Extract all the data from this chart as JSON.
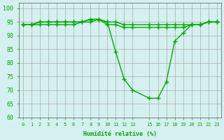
{
  "title": "Humidité relative (%)",
  "xlabel": "Humidité relative (%)",
  "background_color": "#d5f0f0",
  "grid_color": "#aaaaaa",
  "line_color": "#00aa00",
  "xlim": [
    0,
    23
  ],
  "ylim": [
    60,
    102
  ],
  "xticks": [
    0,
    1,
    2,
    3,
    4,
    5,
    6,
    7,
    8,
    9,
    10,
    11,
    12,
    13,
    15,
    16,
    17,
    18,
    19,
    20,
    21,
    22,
    23
  ],
  "yticks": [
    60,
    65,
    70,
    75,
    80,
    85,
    90,
    95,
    100
  ],
  "series": [
    {
      "x": [
        0,
        1,
        2,
        3,
        4,
        5,
        6,
        7,
        8,
        9,
        10,
        11,
        12,
        13,
        15,
        16,
        17,
        18,
        19,
        20,
        21,
        22,
        23
      ],
      "y": [
        94,
        94,
        95,
        95,
        95,
        95,
        95,
        95,
        96,
        96,
        95,
        84,
        74,
        70,
        67,
        67,
        73,
        88,
        91,
        94,
        94,
        95,
        95
      ]
    },
    {
      "x": [
        0,
        1,
        2,
        3,
        4,
        5,
        6,
        7,
        8,
        9,
        10,
        11,
        12,
        13,
        15,
        16,
        17,
        18,
        19,
        20,
        21,
        22,
        23
      ],
      "y": [
        94,
        94,
        94,
        94,
        94,
        94,
        94,
        95,
        95,
        96,
        94,
        94,
        93,
        93,
        93,
        93,
        93,
        93,
        93,
        94,
        94,
        95,
        95
      ]
    },
    {
      "x": [
        0,
        1,
        2,
        3,
        4,
        5,
        6,
        7,
        8,
        9,
        10,
        11,
        12,
        13,
        15,
        16,
        17,
        18,
        19,
        20,
        21,
        22,
        23
      ],
      "y": [
        94,
        94,
        95,
        95,
        95,
        95,
        95,
        95,
        96,
        96,
        95,
        95,
        94,
        94,
        94,
        94,
        94,
        94,
        94,
        94,
        94,
        95,
        95
      ]
    }
  ],
  "marker": "+",
  "markersize": 4,
  "linewidth": 1.0
}
